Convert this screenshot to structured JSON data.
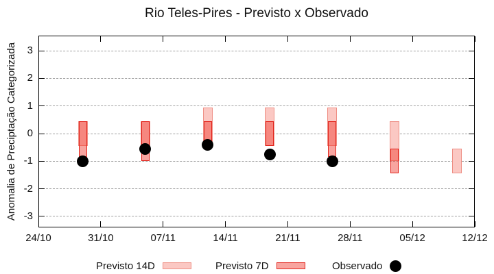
{
  "chart_data": {
    "type": "range-bar",
    "title": "Rio Teles-Pires - Previsto x Observado",
    "ylabel": "Anomalia de Preciptação Categorizada",
    "xlabel": "",
    "legend_position": "bottom",
    "grid": "horizontal dashed lines at integer y values",
    "xlim_days": [
      0,
      49
    ],
    "ylim": [
      -3.4,
      3.55
    ],
    "x_ticks": [
      {
        "day": 0,
        "label": "24/10"
      },
      {
        "day": 7,
        "label": "31/10"
      },
      {
        "day": 14,
        "label": "07/11"
      },
      {
        "day": 21,
        "label": "14/11"
      },
      {
        "day": 28,
        "label": "21/11"
      },
      {
        "day": 35,
        "label": "28/11"
      },
      {
        "day": 42,
        "label": "05/12"
      },
      {
        "day": 49,
        "label": "12/12"
      }
    ],
    "y_ticks": [
      {
        "value": 3,
        "label": "3"
      },
      {
        "value": 2,
        "label": "2"
      },
      {
        "value": 1,
        "label": "1"
      },
      {
        "value": 0,
        "label": "0"
      },
      {
        "value": -1,
        "label": "-1"
      },
      {
        "value": -2,
        "label": "-2"
      },
      {
        "value": -3,
        "label": "-3"
      }
    ],
    "bars": [
      {
        "date": "29/10",
        "day": 5,
        "previsto_14d": [
          -0.45,
          0.45
        ],
        "previsto_7d": [
          -0.95,
          0.45
        ],
        "observado": -1.0
      },
      {
        "date": "05/11",
        "day": 12,
        "previsto_14d": [
          -0.45,
          0.45
        ],
        "previsto_7d": [
          -1.0,
          0.45
        ],
        "observado": -0.55
      },
      {
        "date": "12/11",
        "day": 19,
        "previsto_14d": [
          -0.45,
          0.95
        ],
        "previsto_7d": [
          -0.45,
          0.45
        ],
        "observado": -0.4
      },
      {
        "date": "19/11",
        "day": 26,
        "previsto_14d": [
          -0.45,
          0.95
        ],
        "previsto_7d": [
          -0.45,
          0.45
        ],
        "observado": -0.75
      },
      {
        "date": "26/11",
        "day": 33,
        "previsto_14d": [
          -0.45,
          0.95
        ],
        "previsto_7d": [
          -0.85,
          0.45
        ],
        "observado": -1.0
      },
      {
        "date": "03/12",
        "day": 40,
        "previsto_14d": [
          -1.0,
          0.45
        ],
        "previsto_7d": [
          -1.45,
          -0.55
        ],
        "observado": null
      },
      {
        "date": "10/12",
        "day": 47,
        "previsto_14d": [
          -1.45,
          -0.55
        ],
        "previsto_7d": null,
        "observado": null
      }
    ]
  },
  "legend": {
    "items": [
      {
        "label": "Previsto 14D",
        "swatch": "rect-14d"
      },
      {
        "label": "Previsto 7D",
        "swatch": "rect-7d"
      },
      {
        "label": "Observado",
        "swatch": "dot"
      }
    ]
  },
  "colors": {
    "p14_fill": "#fbc8c3",
    "p14_border": "#ee8e84",
    "p7_fill": "rgba(240,55,45,0.45)",
    "p7_border": "#e2231b",
    "observed": "#000000",
    "grid": "#9e9e9e",
    "axis": "#000000"
  }
}
